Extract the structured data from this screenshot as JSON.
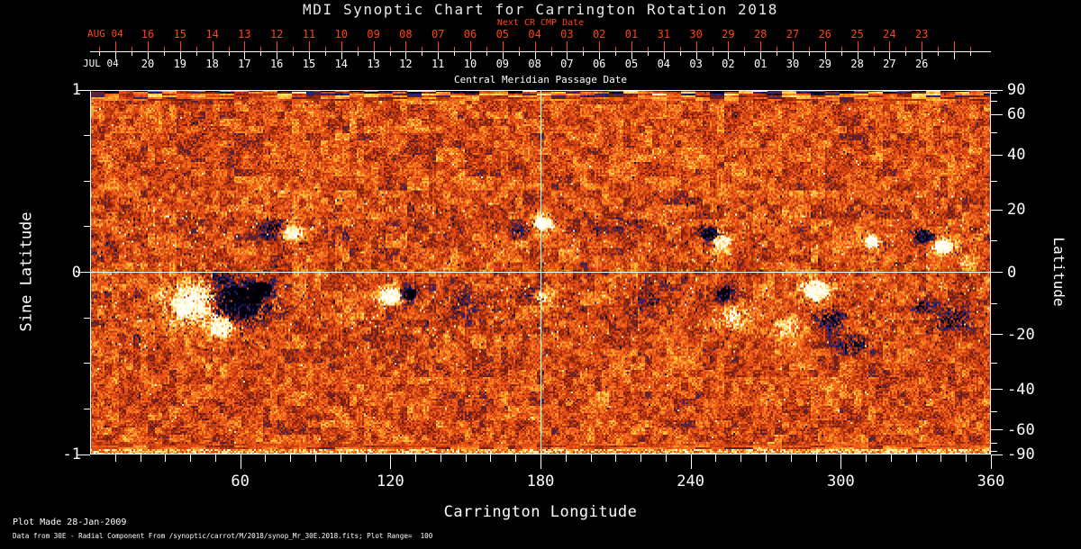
{
  "colors": {
    "background": "#000000",
    "text": "#ffffff",
    "accent_red": "#ff4411",
    "title_gray": "#e8e8e8"
  },
  "chart_data": {
    "type": "heatmap",
    "title": "MDI Synoptic Chart for Carrington Rotation 2018",
    "axes": {
      "top_next": {
        "title": "Next CR CMP Date",
        "month_label": "AUG 04",
        "day_labels": [
          "16",
          "15",
          "14",
          "13",
          "12",
          "11",
          "10",
          "09",
          "08",
          "07",
          "06",
          "05",
          "04",
          "03",
          "02",
          "01",
          "31",
          "30",
          "29",
          "28",
          "27",
          "26",
          "25",
          "24",
          "23"
        ]
      },
      "top_current": {
        "title": "Central Meridian Passage Date",
        "month_label": "JUL 04",
        "day_labels": [
          "20",
          "19",
          "18",
          "17",
          "16",
          "15",
          "14",
          "13",
          "12",
          "11",
          "10",
          "09",
          "08",
          "07",
          "06",
          "05",
          "04",
          "03",
          "02",
          "01",
          "30",
          "29",
          "28",
          "27",
          "26"
        ]
      },
      "bottom": {
        "title": "Carrington Longitude",
        "tick_labels": [
          "60",
          "120",
          "180",
          "240",
          "300",
          "360"
        ],
        "tick_values": [
          60,
          120,
          180,
          240,
          300,
          360
        ],
        "minor_step_deg": 10,
        "range_deg": [
          0,
          360
        ]
      },
      "left": {
        "title": "Sine Latitude",
        "tick_labels": [
          "1",
          "0",
          "-1"
        ],
        "tick_values": [
          1,
          0,
          -1
        ],
        "minor_ticks": [
          0.75,
          0.5,
          0.25,
          -0.25,
          -0.5,
          -0.75
        ],
        "range": [
          -1,
          1
        ]
      },
      "right": {
        "title": "Latitude",
        "tick_labels": [
          "90",
          "60",
          "40",
          "20",
          "0",
          "-20",
          "-40",
          "-60",
          "-90"
        ],
        "tick_values": [
          90,
          60,
          40,
          20,
          0,
          -20,
          -40,
          -60,
          -90
        ],
        "minor_ticks_deg": [
          80,
          70,
          50,
          30,
          10,
          -10,
          -30,
          -50,
          -70,
          -80
        ]
      }
    },
    "crosshair": {
      "longitude_deg": 180,
      "sine_latitude": 0
    },
    "plot_range_gauss": 100,
    "colormap_stops": [
      [
        -1.0,
        "#000006"
      ],
      [
        -0.8,
        "#0a0a30"
      ],
      [
        -0.6,
        "#26268c"
      ],
      [
        -0.46,
        "#4a2448"
      ],
      [
        -0.34,
        "#7a1c08"
      ],
      [
        -0.16,
        "#b43610"
      ],
      [
        0.0,
        "#e24a14"
      ],
      [
        0.12,
        "#f2601c"
      ],
      [
        0.28,
        "#fc8c24"
      ],
      [
        0.45,
        "#ffc43c"
      ],
      [
        0.62,
        "#ffe478"
      ],
      [
        0.78,
        "#fff4c0"
      ],
      [
        1.0,
        "#fffef4"
      ]
    ],
    "active_regions": [
      [
        41,
        -0.17,
        12,
        0.12,
        1,
        1.5
      ],
      [
        52,
        -0.3,
        6,
        0.07,
        1,
        1.3
      ],
      [
        58,
        -0.17,
        14,
        0.12,
        -1,
        1.5
      ],
      [
        68,
        -0.09,
        6,
        0.05,
        -1,
        1.2
      ],
      [
        50,
        -0.02,
        5,
        0.04,
        -1,
        0.8
      ],
      [
        80,
        0.22,
        4.5,
        0.05,
        1,
        1.3
      ],
      [
        72,
        0.24,
        6,
        0.06,
        -1,
        0.9
      ],
      [
        120,
        -0.13,
        5,
        0.055,
        1,
        1.5
      ],
      [
        127,
        -0.12,
        4,
        0.05,
        -1,
        1.4
      ],
      [
        181,
        0.27,
        5,
        0.05,
        1,
        1.3
      ],
      [
        172,
        0.22,
        4,
        0.05,
        -1,
        0.8
      ],
      [
        181,
        -0.14,
        3.5,
        0.045,
        1,
        1.1
      ],
      [
        176,
        -0.12,
        3,
        0.04,
        -1,
        0.7
      ],
      [
        252,
        0.17,
        4.5,
        0.05,
        1,
        1.3
      ],
      [
        247,
        0.21,
        4.5,
        0.05,
        -1,
        1.3
      ],
      [
        257,
        -0.25,
        7,
        0.07,
        1,
        1.1
      ],
      [
        253,
        -0.12,
        3.5,
        0.045,
        -1,
        1.4
      ],
      [
        278,
        -0.3,
        6,
        0.06,
        1,
        0.85
      ],
      [
        290,
        -0.1,
        7,
        0.07,
        1,
        1.2
      ],
      [
        296,
        -0.26,
        6,
        0.07,
        -1,
        1.1
      ],
      [
        305,
        -0.4,
        8,
        0.06,
        -1,
        0.85
      ],
      [
        312,
        0.17,
        3.5,
        0.04,
        1,
        1.3
      ],
      [
        317,
        0.15,
        2,
        0.03,
        -1,
        1.0
      ],
      [
        333,
        0.2,
        4.5,
        0.05,
        -1,
        1.2
      ],
      [
        341,
        0.14,
        5,
        0.05,
        1,
        1.3
      ],
      [
        350,
        0.05,
        3.5,
        0.04,
        1,
        1.0
      ],
      [
        344,
        -0.26,
        8,
        0.07,
        -1,
        0.9
      ],
      [
        332,
        -0.18,
        5,
        0.05,
        -1,
        0.8
      ],
      [
        150,
        -0.18,
        10,
        0.1,
        -1,
        0.45
      ],
      [
        222,
        -0.15,
        12,
        0.1,
        -1,
        0.4
      ],
      [
        100,
        0.2,
        8,
        0.07,
        -1,
        0.35
      ],
      [
        210,
        0.25,
        10,
        0.07,
        -1,
        0.35
      ]
    ],
    "footer": [
      "Plot Made 28-Jan-2009",
      "Data from 30E - Radial Component From /synoptic/carrot/M/2018/synop_Mr_30E.2018.fits; Plot Range=  100"
    ]
  }
}
